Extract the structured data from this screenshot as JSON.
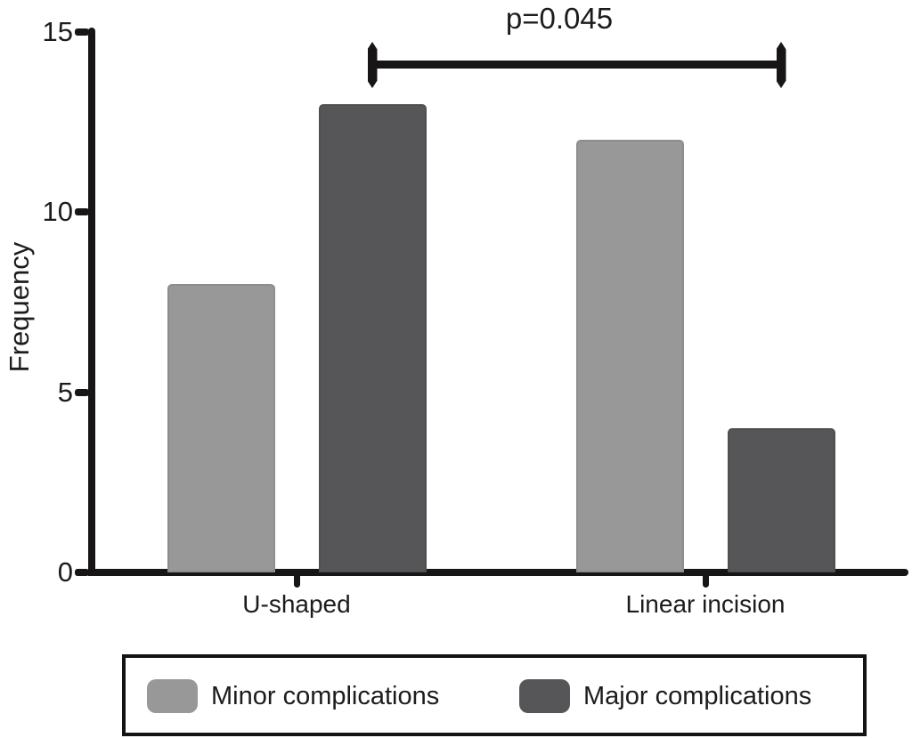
{
  "chart_data": {
    "type": "bar",
    "categories": [
      "U-shaped",
      "Linear incision"
    ],
    "series": [
      {
        "name": "Minor complications",
        "color": "#999899",
        "values": [
          8,
          12
        ]
      },
      {
        "name": "Major complications",
        "color": "#565557",
        "values": [
          13,
          4
        ]
      }
    ],
    "ylabel": "Frequency",
    "xlabel": "",
    "yticks": [
      0,
      5,
      10,
      15
    ],
    "ylim": [
      0,
      15
    ],
    "grid": false,
    "legend_position": "bottom-boxed",
    "annotation": {
      "text": "p=0.045",
      "kind": "significance-bracket",
      "series": "Major complications",
      "groups": [
        0,
        1
      ]
    }
  },
  "colors": {
    "axis": "#171516",
    "text": "#1d1b1c",
    "background": "#ffffff"
  }
}
